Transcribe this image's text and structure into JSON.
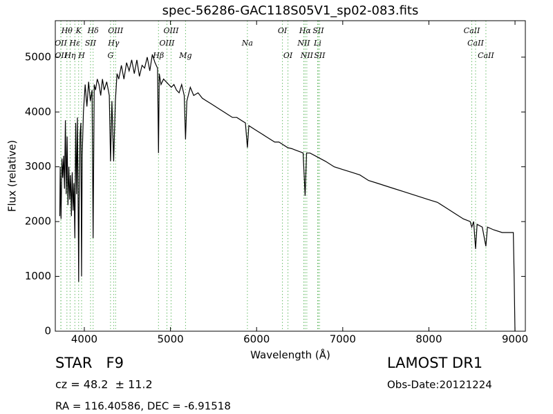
{
  "chart_data": {
    "type": "line",
    "title": "spec-56286-GAC118S05V1_sp02-083.fits",
    "x_label": "Wavelength (Å)",
    "y_label": "Flux (relative)",
    "xlim": [
      3663,
      9120
    ],
    "ylim": [
      0,
      5665
    ],
    "xticks": [
      4000,
      5000,
      6000,
      7000,
      8000,
      9000
    ],
    "yticks": [
      0,
      1000,
      2000,
      3000,
      4000,
      5000
    ],
    "color": "#000000",
    "line_color": "#66bb66",
    "x": [
      3715,
      3720,
      3730,
      3740,
      3750,
      3760,
      3770,
      3780,
      3790,
      3800,
      3810,
      3820,
      3830,
      3840,
      3850,
      3860,
      3870,
      3880,
      3890,
      3900,
      3910,
      3920,
      3930,
      3934,
      3940,
      3950,
      3960,
      3968,
      3975,
      3990,
      4010,
      4030,
      4050,
      4070,
      4090,
      4102,
      4115,
      4130,
      4150,
      4170,
      4190,
      4210,
      4230,
      4260,
      4290,
      4304,
      4320,
      4340,
      4360,
      4380,
      4400,
      4430,
      4460,
      4490,
      4520,
      4550,
      4580,
      4610,
      4640,
      4670,
      4700,
      4730,
      4760,
      4790,
      4820,
      4850,
      4861,
      4870,
      4890,
      4920,
      4950,
      4980,
      5010,
      5040,
      5070,
      5100,
      5130,
      5160,
      5175,
      5190,
      5230,
      5270,
      5320,
      5370,
      5420,
      5470,
      5520,
      5570,
      5620,
      5670,
      5720,
      5770,
      5820,
      5870,
      5893,
      5910,
      5960,
      6010,
      6060,
      6110,
      6160,
      6210,
      6260,
      6310,
      6360,
      6410,
      6460,
      6510,
      6540,
      6563,
      6580,
      6620,
      6680,
      6740,
      6800,
      6900,
      7000,
      7100,
      7200,
      7300,
      7400,
      7500,
      7600,
      7700,
      7800,
      7900,
      8000,
      8100,
      8200,
      8300,
      8400,
      8480,
      8498,
      8520,
      8542,
      8560,
      8620,
      8662,
      8680,
      8750,
      8850,
      8950,
      8980,
      8990,
      9000
    ],
    "series": [
      {
        "name": "flux",
        "values": [
          2100,
          3000,
          2050,
          3150,
          2800,
          3200,
          2600,
          3850,
          2500,
          3550,
          2300,
          3000,
          2400,
          2850,
          2100,
          2900,
          2200,
          2700,
          1700,
          3800,
          2500,
          3900,
          1900,
          900,
          2400,
          3600,
          3800,
          1000,
          3200,
          4000,
          4500,
          4100,
          4550,
          4200,
          4400,
          1700,
          4500,
          4400,
          4600,
          4500,
          4300,
          4600,
          4400,
          4550,
          4300,
          3100,
          4200,
          3100,
          4200,
          4700,
          4600,
          4850,
          4600,
          4900,
          4750,
          4950,
          4700,
          4950,
          4650,
          4850,
          4800,
          5000,
          4750,
          5050,
          4900,
          4800,
          3250,
          4700,
          4500,
          4600,
          4550,
          4500,
          4450,
          4500,
          4400,
          4350,
          4500,
          4300,
          3500,
          4200,
          4450,
          4300,
          4350,
          4250,
          4200,
          4150,
          4100,
          4050,
          4000,
          3950,
          3900,
          3900,
          3850,
          3800,
          3350,
          3750,
          3700,
          3650,
          3600,
          3550,
          3500,
          3450,
          3450,
          3400,
          3350,
          3330,
          3300,
          3270,
          3250,
          2470,
          3250,
          3250,
          3200,
          3150,
          3100,
          3000,
          2950,
          2900,
          2850,
          2750,
          2700,
          2650,
          2600,
          2550,
          2500,
          2450,
          2400,
          2350,
          2250,
          2150,
          2050,
          2000,
          1900,
          2000,
          1500,
          1950,
          1900,
          1550,
          1900,
          1850,
          1800,
          1800,
          1800,
          1000,
          0
        ]
      }
    ],
    "lines": [
      [
        {
          "label": "Hθ",
          "x": 3798
        },
        {
          "label": "K",
          "x": 3934
        },
        {
          "label": "Hδ",
          "x": 4102
        },
        {
          "label": "OIII",
          "x": 4363
        },
        {
          "label": "OIII",
          "x": 5007
        },
        {
          "label": "OI",
          "x": 6300
        },
        {
          "label": "Hα",
          "x": 6563
        },
        {
          "label": "SII",
          "x": 6716
        },
        {
          "label": "CaII",
          "x": 8498
        }
      ],
      [
        {
          "label": "OII",
          "x": 3727
        },
        {
          "label": "Hε",
          "x": 3890
        },
        {
          "label": "SII",
          "x": 4072
        },
        {
          "label": "Hγ",
          "x": 4340
        },
        {
          "label": "OIII",
          "x": 4959
        },
        {
          "label": "Na",
          "x": 5893
        },
        {
          "label": "NII",
          "x": 6548
        },
        {
          "label": "Li",
          "x": 6708
        },
        {
          "label": "CaII",
          "x": 8542
        }
      ],
      [
        {
          "label": "OII",
          "x": 3729
        },
        {
          "label": "Hη",
          "x": 3835
        },
        {
          "label": "H",
          "x": 3968
        },
        {
          "label": "G",
          "x": 4304
        },
        {
          "label": "Hβ",
          "x": 4861
        },
        {
          "label": "Mg",
          "x": 5175
        },
        {
          "label": "OI",
          "x": 6364
        },
        {
          "label": "NII",
          "x": 6583
        },
        {
          "label": "SII",
          "x": 6731
        },
        {
          "label": "CaII",
          "x": 8662
        }
      ]
    ],
    "footer": {
      "class": "STAR   F9",
      "cz": "cz = 48.2  ± 11.2",
      "coords": "RA = 116.40586, DEC = -6.91518",
      "survey": "LAMOST DR1",
      "date": "Obs-Date:20121224"
    }
  }
}
